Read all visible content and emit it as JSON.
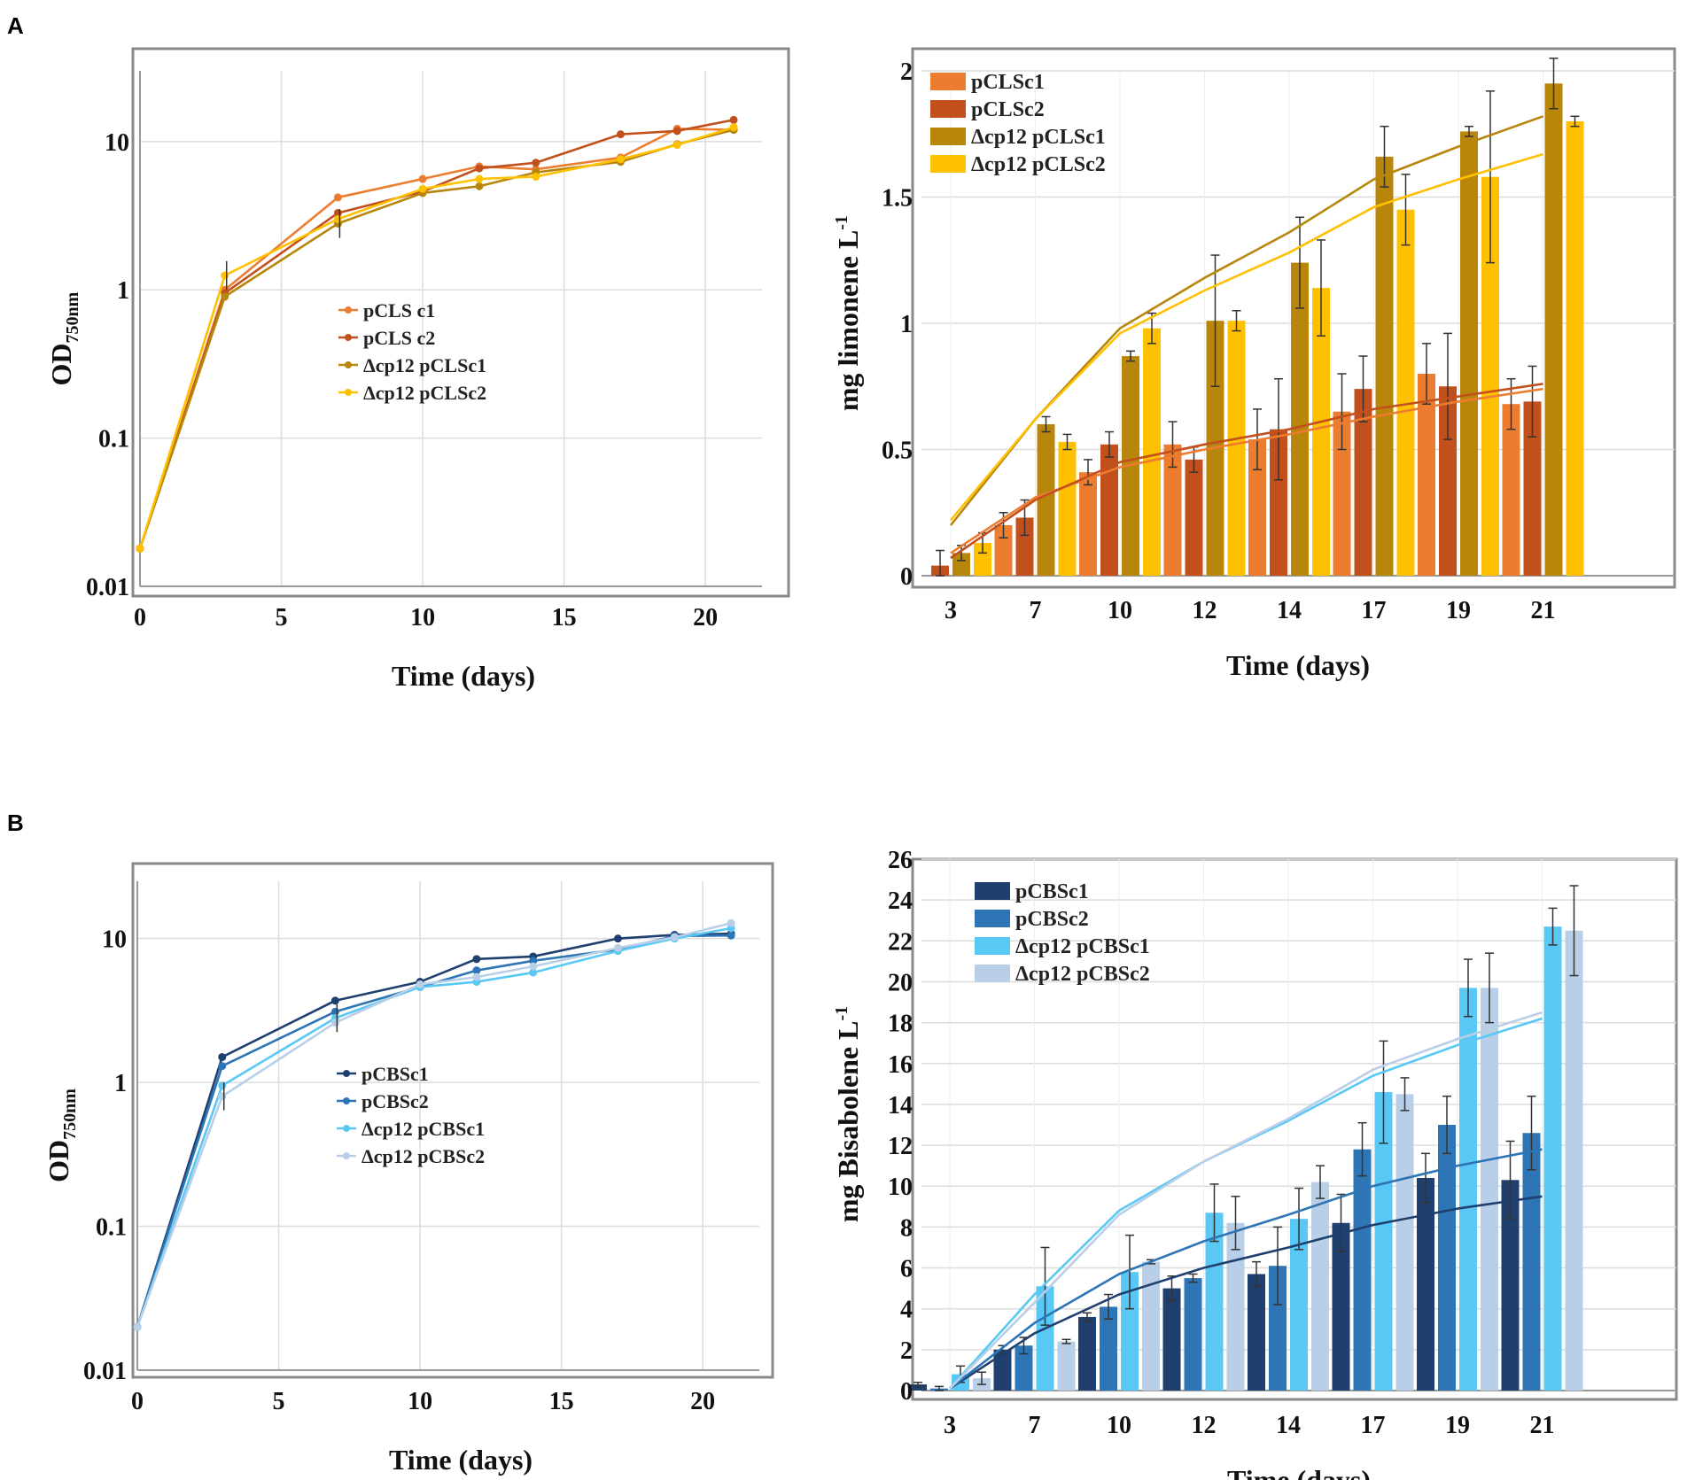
{
  "panels": [
    {
      "id": "A",
      "label": "A"
    },
    {
      "id": "B",
      "label": "B"
    }
  ],
  "chart_data": [
    {
      "id": "A_growth",
      "type": "line",
      "yscale": "log",
      "ylabel_main": "OD",
      "ylabel_sub": "750nm",
      "xlabel": "Time (days)",
      "xlim": [
        0,
        22
      ],
      "ylim": [
        0.01,
        30
      ],
      "xticks": [
        "0",
        "5",
        "10",
        "15",
        "20"
      ],
      "xtick_values": [
        0,
        5,
        10,
        15,
        20
      ],
      "yticks": [
        "0.01",
        "0.1",
        "1",
        "10"
      ],
      "ytick_values": [
        0.01,
        0.1,
        1,
        10
      ],
      "x": [
        0,
        3,
        7,
        10,
        12,
        14,
        17,
        19,
        21
      ],
      "series": [
        {
          "name": "pCLS c1",
          "color": "#ec7c30",
          "values": [
            0.018,
            1.0,
            4.2,
            5.6,
            6.8,
            6.5,
            7.8,
            12.2,
            12.0
          ]
        },
        {
          "name": "pCLS c2",
          "color": "#c2501c",
          "values": [
            0.018,
            0.95,
            3.3,
            4.6,
            6.6,
            7.2,
            11.2,
            11.8,
            14.0
          ]
        },
        {
          "name": "Δcp12 pCLSc1",
          "color": "#b8860b",
          "values": [
            0.018,
            0.9,
            2.8,
            4.5,
            5.0,
            6.2,
            7.3,
            9.6,
            12.0
          ]
        },
        {
          "name": "Δcp12 pCLSc2",
          "color": "#ffc000",
          "values": [
            0.018,
            1.25,
            3.0,
            4.8,
            5.6,
            5.8,
            7.6,
            9.5,
            12.5
          ]
        }
      ]
    },
    {
      "id": "A_limonene",
      "type": "bar",
      "ylabel": "mg limonene L",
      "ylabel_sup": "-1",
      "xlabel": "Time (days)",
      "ylim": [
        0,
        2
      ],
      "yticks": [
        "0",
        "0.5",
        "1",
        "1.5",
        "2"
      ],
      "ytick_values": [
        0,
        0.5,
        1,
        1.5,
        2
      ],
      "categories": [
        "3",
        "7",
        "10",
        "12",
        "14",
        "17",
        "19",
        "21"
      ],
      "series": [
        {
          "name": "pCLSc1",
          "color": "#ec7c30",
          "values": [
            0.0,
            0.2,
            0.41,
            0.52,
            0.54,
            0.65,
            0.8,
            0.68
          ],
          "errors": [
            0.0,
            0.05,
            0.05,
            0.09,
            0.12,
            0.15,
            0.12,
            0.1
          ]
        },
        {
          "name": "pCLSc2",
          "color": "#c2501c",
          "values": [
            0.04,
            0.23,
            0.52,
            0.46,
            0.58,
            0.74,
            0.75,
            0.69
          ],
          "errors": [
            0.06,
            0.07,
            0.05,
            0.05,
            0.2,
            0.13,
            0.21,
            0.14
          ]
        },
        {
          "name": "Δcp12 pCLSc1",
          "color": "#b8860b",
          "values": [
            0.09,
            0.6,
            0.87,
            1.01,
            1.24,
            1.66,
            1.76,
            1.95
          ],
          "errors": [
            0.03,
            0.03,
            0.02,
            0.26,
            0.18,
            0.12,
            0.02,
            0.1
          ]
        },
        {
          "name": "Δcp12 pCLSc2",
          "color": "#ffc000",
          "values": [
            0.13,
            0.53,
            0.98,
            1.01,
            1.14,
            1.45,
            1.58,
            1.8
          ],
          "errors": [
            0.04,
            0.03,
            0.06,
            0.04,
            0.19,
            0.14,
            0.34,
            0.02
          ]
        }
      ],
      "trendlines": [
        {
          "color": "#ec7c30",
          "values": [
            0.09,
            0.31,
            0.43,
            0.5,
            0.56,
            0.63,
            0.69,
            0.74
          ]
        },
        {
          "color": "#c2501c",
          "values": [
            0.07,
            0.3,
            0.45,
            0.52,
            0.58,
            0.66,
            0.71,
            0.76
          ]
        },
        {
          "color": "#b8860b",
          "values": [
            0.2,
            0.62,
            0.98,
            1.18,
            1.36,
            1.57,
            1.7,
            1.82
          ]
        },
        {
          "color": "#ffc000",
          "values": [
            0.22,
            0.62,
            0.96,
            1.13,
            1.28,
            1.46,
            1.57,
            1.67
          ]
        }
      ]
    },
    {
      "id": "B_growth",
      "type": "line",
      "yscale": "log",
      "ylabel_main": "OD",
      "ylabel_sub": "750nm",
      "xlabel": "Time (days)",
      "xlim": [
        0,
        22
      ],
      "ylim": [
        0.01,
        25
      ],
      "xticks": [
        "0",
        "5",
        "10",
        "15",
        "20"
      ],
      "xtick_values": [
        0,
        5,
        10,
        15,
        20
      ],
      "yticks": [
        "0.01",
        "0.1",
        "1",
        "10"
      ],
      "ytick_values": [
        0.01,
        0.1,
        1,
        10
      ],
      "x": [
        0,
        3,
        7,
        10,
        12,
        14,
        17,
        19,
        21
      ],
      "series": [
        {
          "name": "pCBSc1",
          "color": "#1f3f6e",
          "values": [
            0.02,
            1.5,
            3.7,
            5.0,
            7.2,
            7.5,
            10.0,
            10.6,
            10.8
          ]
        },
        {
          "name": "pCBSc2",
          "color": "#2e75b6",
          "values": [
            0.02,
            1.3,
            3.1,
            4.6,
            6.0,
            7.0,
            8.4,
            10.4,
            10.5
          ]
        },
        {
          "name": "Δcp12 pCBSc1",
          "color": "#5ac8f5",
          "values": [
            0.02,
            0.95,
            2.8,
            4.6,
            5.0,
            5.8,
            8.2,
            10.0,
            11.8
          ]
        },
        {
          "name": "Δcp12 pCBSc2",
          "color": "#b9cfe8",
          "values": [
            0.02,
            0.8,
            2.6,
            4.8,
            5.4,
            6.4,
            8.6,
            10.2,
            12.8
          ]
        }
      ]
    },
    {
      "id": "B_bisabolene",
      "type": "bar",
      "ylabel": "mg Bisabolene L",
      "ylabel_sup": "-1",
      "xlabel": "Time (days)",
      "ylim": [
        0,
        26
      ],
      "yticks": [
        "0",
        "2",
        "4",
        "6",
        "8",
        "10",
        "12",
        "14",
        "16",
        "18",
        "20",
        "22",
        "24",
        "26"
      ],
      "ytick_values": [
        0,
        2,
        4,
        6,
        8,
        10,
        12,
        14,
        16,
        18,
        20,
        22,
        24,
        26
      ],
      "categories": [
        "3",
        "7",
        "10",
        "12",
        "14",
        "17",
        "19",
        "21"
      ],
      "series": [
        {
          "name": "pCBSc1",
          "color": "#1f3f6e",
          "values": [
            0.3,
            2.0,
            3.6,
            5.0,
            5.7,
            8.2,
            10.4,
            10.3
          ],
          "errors": [
            0.1,
            0.2,
            0.2,
            0.6,
            0.6,
            1.4,
            1.2,
            1.9
          ]
        },
        {
          "name": "pCBSc2",
          "color": "#2e75b6",
          "values": [
            0.1,
            2.2,
            4.1,
            5.5,
            6.1,
            11.8,
            13.0,
            12.6
          ],
          "errors": [
            0.1,
            0.4,
            0.6,
            0.2,
            1.9,
            1.3,
            1.4,
            1.8
          ]
        },
        {
          "name": "Δcp12 pCBSc1",
          "color": "#5ac8f5",
          "values": [
            0.8,
            5.1,
            5.8,
            8.7,
            8.4,
            14.6,
            19.7,
            22.7
          ],
          "errors": [
            0.4,
            1.9,
            1.8,
            1.4,
            1.5,
            2.5,
            1.4,
            0.9
          ]
        },
        {
          "name": "Δcp12 pCBSc2",
          "color": "#b9cfe8",
          "values": [
            0.6,
            2.4,
            6.3,
            8.2,
            10.2,
            14.5,
            19.7,
            22.5
          ],
          "errors": [
            0.3,
            0.1,
            0.1,
            1.3,
            0.8,
            0.8,
            1.7,
            2.2
          ]
        }
      ],
      "trendlines": [
        {
          "color": "#1f3f6e",
          "values": [
            0.1,
            2.8,
            4.7,
            6.0,
            7.0,
            8.1,
            8.9,
            9.5
          ]
        },
        {
          "color": "#2e75b6",
          "values": [
            0.1,
            3.3,
            5.7,
            7.3,
            8.6,
            10.0,
            11.0,
            11.8
          ]
        },
        {
          "color": "#5ac8f5",
          "values": [
            0.1,
            4.7,
            8.8,
            11.2,
            13.2,
            15.4,
            16.9,
            18.2
          ]
        },
        {
          "color": "#b9cfe8",
          "values": [
            0.1,
            4.3,
            8.6,
            11.2,
            13.3,
            15.7,
            17.2,
            18.5
          ]
        }
      ]
    }
  ]
}
